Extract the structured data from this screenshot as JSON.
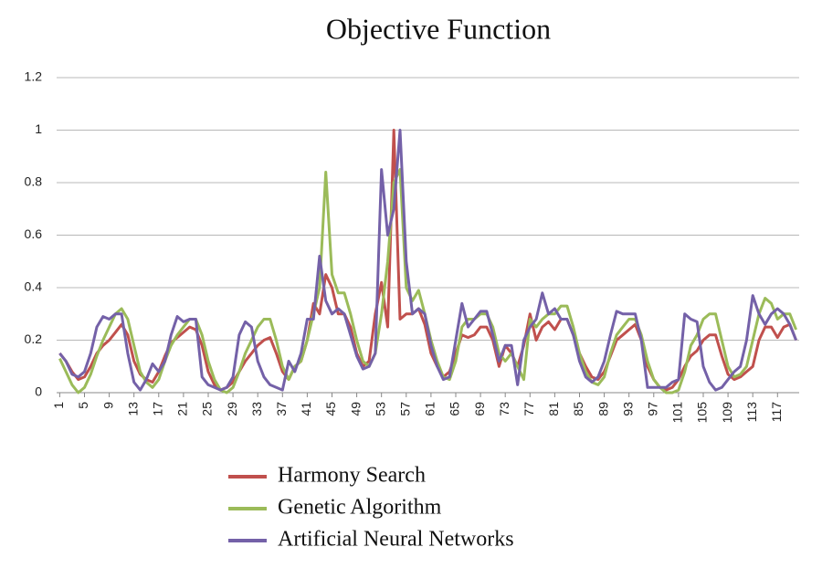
{
  "chart_data": {
    "type": "line",
    "title": "Objective Function",
    "categories": [
      1,
      null,
      null,
      null,
      5,
      null,
      null,
      null,
      9,
      null,
      null,
      null,
      13,
      null,
      null,
      null,
      17,
      null,
      null,
      null,
      21,
      null,
      null,
      null,
      25,
      null,
      null,
      null,
      29,
      null,
      null,
      null,
      33,
      null,
      null,
      null,
      37,
      null,
      null,
      null,
      41,
      null,
      null,
      null,
      45,
      null,
      null,
      null,
      49,
      null,
      null,
      null,
      53,
      null,
      null,
      null,
      57,
      null,
      null,
      null,
      61,
      null,
      null,
      null,
      65,
      null,
      null,
      null,
      69,
      null,
      null,
      null,
      73,
      null,
      null,
      null,
      77,
      null,
      null,
      null,
      81,
      null,
      null,
      null,
      85,
      null,
      null,
      null,
      89,
      null,
      null,
      null,
      93,
      null,
      null,
      null,
      97,
      null,
      null,
      null,
      101,
      null,
      null,
      null,
      105,
      null,
      null,
      null,
      109,
      null,
      null,
      null,
      113,
      null,
      null,
      null,
      117,
      null,
      null,
      null
    ],
    "series": [
      {
        "name": "Harmony Search",
        "color": "#c0504d",
        "values": [
          0.15,
          0.12,
          0.08,
          0.05,
          0.06,
          0.1,
          0.15,
          0.18,
          0.2,
          0.23,
          0.26,
          0.22,
          0.12,
          0.07,
          0.05,
          0.04,
          0.08,
          0.14,
          0.19,
          0.21,
          0.23,
          0.25,
          0.24,
          0.18,
          0.08,
          0.03,
          0.01,
          0.02,
          0.04,
          0.08,
          0.12,
          0.15,
          0.18,
          0.2,
          0.21,
          0.15,
          0.08,
          0.05,
          0.1,
          0.12,
          0.2,
          0.34,
          0.3,
          0.45,
          0.4,
          0.3,
          0.3,
          0.25,
          0.15,
          0.1,
          0.12,
          0.3,
          0.42,
          0.25,
          1.0,
          0.28,
          0.3,
          0.3,
          0.32,
          0.26,
          0.15,
          0.1,
          0.06,
          0.08,
          0.15,
          0.22,
          0.21,
          0.22,
          0.25,
          0.25,
          0.2,
          0.1,
          0.18,
          0.15,
          0.1,
          0.18,
          0.3,
          0.2,
          0.25,
          0.27,
          0.24,
          0.28,
          0.28,
          0.22,
          0.15,
          0.1,
          0.06,
          0.05,
          0.08,
          0.14,
          0.2,
          0.22,
          0.24,
          0.26,
          0.2,
          0.1,
          0.05,
          0.02,
          0.01,
          0.02,
          0.05,
          0.1,
          0.14,
          0.16,
          0.2,
          0.22,
          0.22,
          0.14,
          0.07,
          0.05,
          0.06,
          0.08,
          0.1,
          0.2,
          0.25,
          0.25,
          0.21,
          0.25,
          0.26,
          0.2
        ]
      },
      {
        "name": "Genetic Algorithm",
        "color": "#9bbb59",
        "values": [
          0.13,
          0.08,
          0.03,
          0.0,
          0.02,
          0.07,
          0.14,
          0.2,
          0.25,
          0.3,
          0.32,
          0.28,
          0.18,
          0.08,
          0.04,
          0.02,
          0.05,
          0.12,
          0.18,
          0.22,
          0.25,
          0.28,
          0.28,
          0.22,
          0.12,
          0.05,
          0.01,
          0.0,
          0.02,
          0.08,
          0.15,
          0.2,
          0.25,
          0.28,
          0.28,
          0.2,
          0.1,
          0.05,
          0.1,
          0.12,
          0.2,
          0.3,
          0.4,
          0.84,
          0.45,
          0.38,
          0.38,
          0.3,
          0.2,
          0.12,
          0.1,
          0.15,
          0.3,
          0.5,
          0.8,
          0.85,
          0.4,
          0.35,
          0.39,
          0.3,
          0.2,
          0.12,
          0.06,
          0.05,
          0.12,
          0.25,
          0.28,
          0.28,
          0.3,
          0.3,
          0.25,
          0.15,
          0.12,
          0.15,
          0.1,
          0.05,
          0.28,
          0.25,
          0.28,
          0.3,
          0.3,
          0.33,
          0.33,
          0.25,
          0.15,
          0.08,
          0.04,
          0.03,
          0.06,
          0.15,
          0.22,
          0.25,
          0.28,
          0.28,
          0.22,
          0.12,
          0.05,
          0.02,
          0.0,
          0.0,
          0.01,
          0.08,
          0.18,
          0.22,
          0.28,
          0.3,
          0.3,
          0.2,
          0.1,
          0.06,
          0.07,
          0.1,
          0.2,
          0.3,
          0.36,
          0.34,
          0.28,
          0.3,
          0.3,
          0.24
        ]
      },
      {
        "name": "Artificial Neural Networks",
        "color": "#7461a8",
        "values": [
          0.15,
          0.12,
          0.07,
          0.06,
          0.08,
          0.15,
          0.25,
          0.29,
          0.28,
          0.3,
          0.3,
          0.15,
          0.04,
          0.01,
          0.05,
          0.11,
          0.08,
          0.12,
          0.22,
          0.29,
          0.27,
          0.28,
          0.28,
          0.06,
          0.03,
          0.02,
          0.01,
          0.02,
          0.06,
          0.22,
          0.27,
          0.25,
          0.12,
          0.06,
          0.03,
          0.02,
          0.01,
          0.12,
          0.08,
          0.15,
          0.28,
          0.28,
          0.52,
          0.35,
          0.3,
          0.32,
          0.3,
          0.22,
          0.14,
          0.09,
          0.1,
          0.15,
          0.85,
          0.6,
          0.7,
          1.0,
          0.5,
          0.3,
          0.32,
          0.3,
          0.18,
          0.1,
          0.05,
          0.06,
          0.2,
          0.34,
          0.25,
          0.28,
          0.31,
          0.31,
          0.22,
          0.12,
          0.18,
          0.18,
          0.03,
          0.2,
          0.25,
          0.28,
          0.38,
          0.3,
          0.32,
          0.28,
          0.28,
          0.22,
          0.12,
          0.06,
          0.04,
          0.06,
          0.12,
          0.22,
          0.31,
          0.3,
          0.3,
          0.3,
          0.2,
          0.02,
          0.02,
          0.02,
          0.02,
          0.04,
          0.05,
          0.3,
          0.28,
          0.27,
          0.1,
          0.04,
          0.01,
          0.02,
          0.05,
          0.08,
          0.1,
          0.2,
          0.37,
          0.3,
          0.26,
          0.3,
          0.32,
          0.3,
          0.26,
          0.2
        ]
      }
    ],
    "ylim": [
      0,
      1.2
    ],
    "yticks": [
      0,
      0.2,
      0.4,
      0.6,
      0.8,
      1,
      1.2
    ],
    "grid": true
  }
}
